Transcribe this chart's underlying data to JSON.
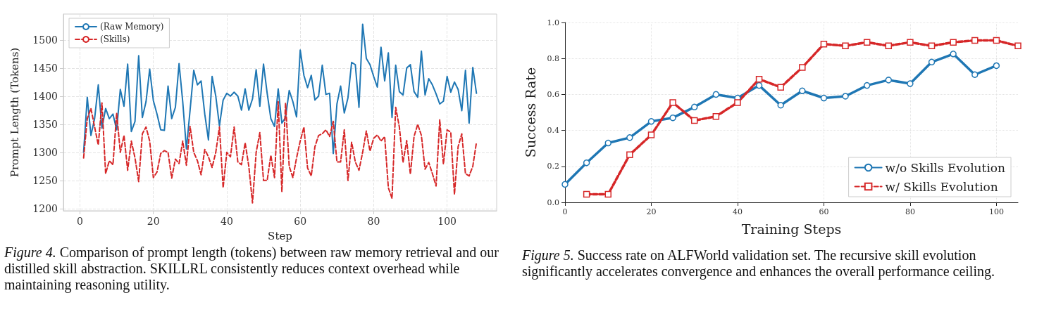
{
  "chart_data": [
    {
      "type": "line",
      "xlabel": "Step",
      "ylabel": "Prompt Length (Tokens)",
      "x": [
        1,
        2,
        3,
        4,
        5,
        6,
        7,
        8,
        9,
        10,
        11,
        12,
        13,
        14,
        15,
        16,
        17,
        18,
        19,
        20,
        21,
        22,
        23,
        24,
        25,
        26,
        27,
        28,
        29,
        30,
        31,
        32,
        33,
        34,
        35,
        36,
        37,
        38,
        39,
        40,
        41,
        42,
        43,
        44,
        45,
        46,
        47,
        48,
        49,
        50,
        51,
        52,
        53,
        54,
        55,
        56,
        57,
        58,
        59,
        60,
        61,
        62,
        63,
        64,
        65,
        66,
        67,
        68,
        69,
        70,
        71,
        72,
        73,
        74,
        75,
        76,
        77,
        78,
        79,
        80,
        81,
        82,
        83,
        84,
        85,
        86,
        87,
        88,
        89,
        90,
        91,
        92,
        93,
        94,
        95,
        96,
        97,
        98,
        99,
        100,
        101,
        102,
        103,
        104,
        105,
        106,
        107,
        108
      ],
      "series": [
        {
          "name": "(Raw Memory)",
          "color": "#1f77b4",
          "line_style": "solid",
          "values": [
            1300,
            1398,
            1330,
            1360,
            1420,
            1343,
            1378,
            1360,
            1368,
            1340,
            1412,
            1382,
            1457,
            1337,
            1355,
            1472,
            1362,
            1390,
            1448,
            1392,
            1368,
            1340,
            1339,
            1418,
            1360,
            1380,
            1458,
            1390,
            1306,
            1375,
            1446,
            1420,
            1427,
            1368,
            1322,
            1435,
            1400,
            1347,
            1393,
            1405,
            1400,
            1407,
            1400,
            1375,
            1413,
            1375,
            1395,
            1447,
            1382,
            1457,
            1405,
            1360,
            1346,
            1413,
            1352,
            1362,
            1410,
            1390,
            1363,
            1482,
            1437,
            1415,
            1437,
            1393,
            1400,
            1455,
            1403,
            1405,
            1298,
            1386,
            1418,
            1370,
            1397,
            1460,
            1456,
            1380,
            1528,
            1467,
            1456,
            1435,
            1416,
            1487,
            1427,
            1477,
            1362,
            1455,
            1408,
            1402,
            1450,
            1456,
            1408,
            1398,
            1480,
            1402,
            1431,
            1420,
            1404,
            1386,
            1391,
            1435,
            1407,
            1425,
            1412,
            1374,
            1446,
            1352,
            1451,
            1405
          ]
        },
        {
          "name": "(Skills)",
          "color": "#d62728",
          "line_style": "dashed",
          "values": [
            1290,
            1360,
            1378,
            1345,
            1313,
            1388,
            1262,
            1285,
            1278,
            1370,
            1300,
            1330,
            1268,
            1320,
            1290,
            1248,
            1333,
            1345,
            1320,
            1255,
            1265,
            1298,
            1303,
            1300,
            1254,
            1288,
            1280,
            1320,
            1277,
            1346,
            1300,
            1285,
            1260,
            1305,
            1292,
            1273,
            1300,
            1345,
            1237,
            1300,
            1292,
            1345,
            1283,
            1278,
            1317,
            1275,
            1210,
            1300,
            1335,
            1250,
            1250,
            1295,
            1255,
            1390,
            1230,
            1388,
            1275,
            1255,
            1290,
            1320,
            1345,
            1272,
            1258,
            1310,
            1330,
            1333,
            1340,
            1328,
            1355,
            1283,
            1283,
            1340,
            1250,
            1318,
            1283,
            1268,
            1300,
            1338,
            1302,
            1325,
            1331,
            1320,
            1328,
            1237,
            1218,
            1380,
            1345,
            1282,
            1321,
            1261,
            1328,
            1350,
            1330,
            1270,
            1282,
            1262,
            1240,
            1358,
            1279,
            1340,
            1336,
            1225,
            1310,
            1333,
            1262,
            1258,
            1275,
            1318
          ]
        }
      ],
      "xlim": [
        -4.5,
        113.5
      ],
      "ylim": [
        1196,
        1546
      ],
      "xticks": [
        0,
        20,
        40,
        60,
        80,
        100
      ],
      "yticks": [
        1200,
        1250,
        1300,
        1350,
        1400,
        1450,
        1500
      ],
      "grid": true,
      "legend": "top left",
      "annotations": [
        "Figure 4. Comparison of prompt length (tokens) between raw memory retrieval and our distilled skill abstraction. SKILLRL consistently reduces context overhead while maintaining reasoning utility."
      ]
    },
    {
      "type": "line",
      "xlabel": "Training Steps",
      "ylabel": "Success Rate",
      "series": [
        {
          "name": "w/o Skills Evolution",
          "color": "#1f77b4",
          "line_style": "solid",
          "marker": "circle",
          "x": [
            0,
            5,
            10,
            15,
            20,
            25,
            30,
            35,
            40,
            45,
            50,
            55,
            60,
            65,
            70,
            75,
            80,
            85,
            90,
            95,
            100
          ],
          "values": [
            0.1,
            0.22,
            0.33,
            0.36,
            0.45,
            0.47,
            0.53,
            0.6,
            0.58,
            0.65,
            0.54,
            0.62,
            0.58,
            0.59,
            0.65,
            0.68,
            0.66,
            0.78,
            0.825,
            0.71,
            0.76
          ]
        },
        {
          "name": "w/ Skills Evolution",
          "color": "#d62728",
          "line_style": "dashed",
          "marker": "square",
          "x": [
            5,
            10,
            15,
            20,
            25,
            30,
            35,
            40,
            45,
            50,
            55,
            60,
            65,
            70,
            75,
            80,
            85,
            90,
            95,
            100,
            105
          ],
          "values": [
            0.045,
            0.045,
            0.265,
            0.375,
            0.555,
            0.455,
            0.478,
            0.555,
            0.685,
            0.64,
            0.75,
            0.88,
            0.87,
            0.89,
            0.87,
            0.89,
            0.87,
            0.89,
            0.9,
            0.9,
            0.87
          ]
        }
      ],
      "xlim": [
        0,
        105
      ],
      "ylim": [
        0,
        1
      ],
      "xticks": [
        0,
        20,
        40,
        60,
        80,
        100
      ],
      "yticks": [
        {
          "value": 0,
          "label": "0.0"
        },
        0.2,
        0.4,
        0.6,
        0.8,
        {
          "value": 1,
          "label": "1.0"
        }
      ],
      "grid": true,
      "legend": "bottom right",
      "annotations": [
        "Figure 5. Success rate on ALFWorld validation set. The recursive skill evolution significantly accelerates convergence and enhances the overall performance ceiling."
      ]
    }
  ]
}
